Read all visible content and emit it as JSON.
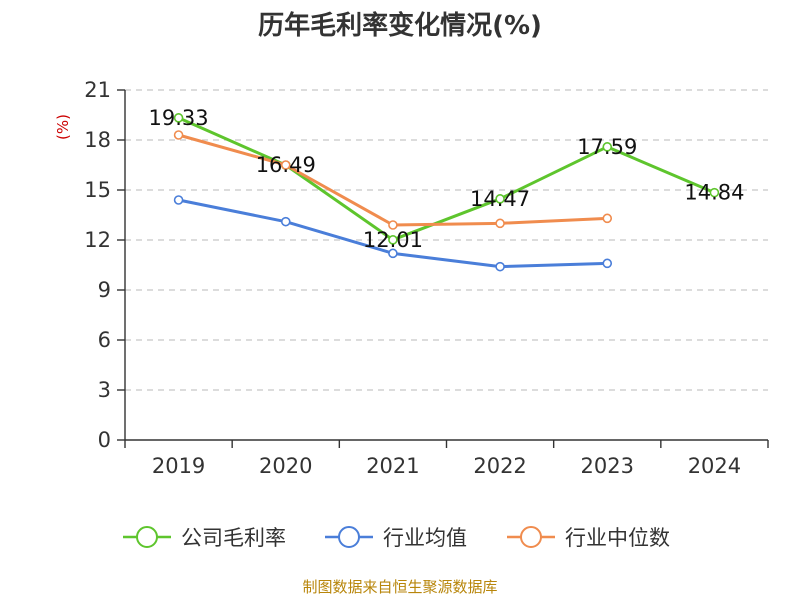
{
  "chart_data": {
    "type": "line",
    "title": "历年毛利率变化情况(%)",
    "ylabel": "(%)",
    "xlabel": "",
    "categories": [
      "2019",
      "2020",
      "2021",
      "2022",
      "2023",
      "2024"
    ],
    "ylim": [
      0,
      21
    ],
    "yticks": [
      0,
      3,
      6,
      9,
      12,
      15,
      18,
      21
    ],
    "grid": true,
    "legend_position": "bottom",
    "series": [
      {
        "name": "公司毛利率",
        "color": "#5ec52d",
        "values": [
          19.33,
          16.49,
          12.01,
          14.47,
          17.59,
          14.84
        ],
        "labels": [
          "19.33",
          "16.49",
          "12.01",
          "14.47",
          "17.59",
          "14.84"
        ]
      },
      {
        "name": "行业均值",
        "color": "#4a7ed9",
        "values": [
          14.4,
          13.1,
          11.2,
          10.4,
          10.6,
          null
        ]
      },
      {
        "name": "行业中位数",
        "color": "#f08c4e",
        "values": [
          18.3,
          16.5,
          12.9,
          13.0,
          13.3,
          null
        ]
      }
    ]
  },
  "footer": {
    "source": "制图数据来自恒生聚源数据库"
  }
}
